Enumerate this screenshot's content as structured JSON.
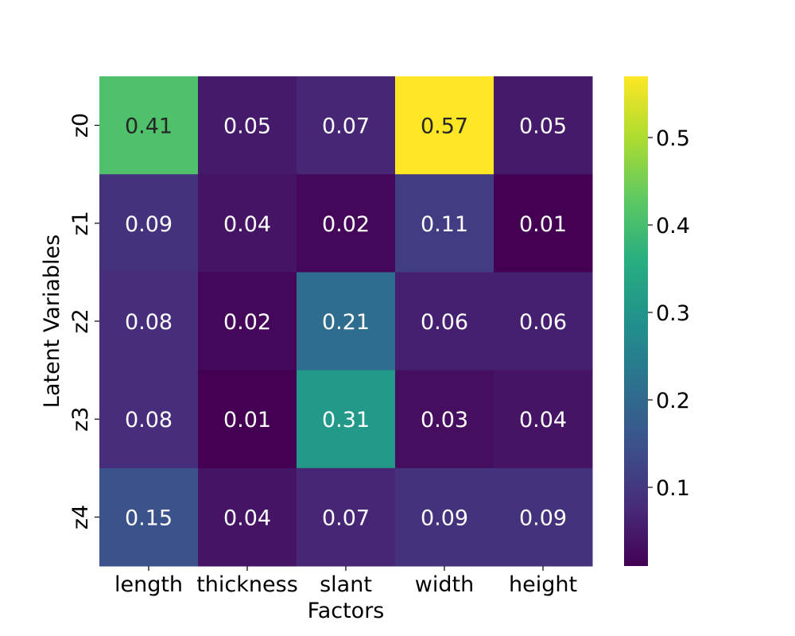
{
  "chart_data": {
    "type": "heatmap",
    "title": "",
    "xlabel": "Factors",
    "ylabel": "Latent Variables",
    "x_categories": [
      "length",
      "thickness",
      "slant",
      "width",
      "height"
    ],
    "y_categories": [
      "z0",
      "z1",
      "z2",
      "z3",
      "z4"
    ],
    "values": [
      [
        0.41,
        0.05,
        0.07,
        0.57,
        0.05
      ],
      [
        0.09,
        0.04,
        0.02,
        0.11,
        0.01
      ],
      [
        0.08,
        0.02,
        0.21,
        0.06,
        0.06
      ],
      [
        0.08,
        0.01,
        0.31,
        0.03,
        0.04
      ],
      [
        0.15,
        0.04,
        0.07,
        0.09,
        0.09
      ]
    ],
    "colormap": "viridis",
    "color_range": [
      0.01,
      0.57
    ],
    "colorbar_ticks": [
      "0.1",
      "0.2",
      "0.3",
      "0.4",
      "0.5"
    ],
    "annotation_colors": {
      "light_cell_text": "#262626",
      "dark_cell_text": "#ffffff"
    }
  }
}
